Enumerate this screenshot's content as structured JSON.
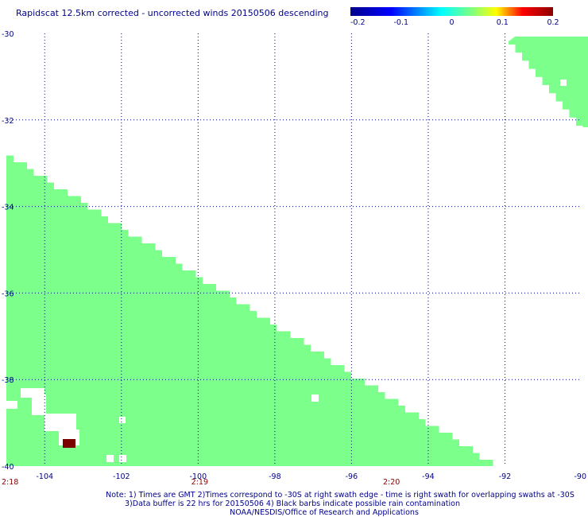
{
  "chart_data": {
    "type": "heatmap",
    "title": "Rapidscat 12.5km corrected - uncorrected winds 20150506 descending",
    "x_axis": {
      "range": [
        -105,
        -90
      ],
      "ticks": [
        -104,
        -102,
        -100,
        -98,
        -96,
        -94,
        -92,
        -90
      ],
      "tick_labels": [
        "-104",
        "-102",
        "-100",
        "-98",
        "-96",
        "-94",
        "-92",
        "-90"
      ]
    },
    "y_axis": {
      "range": [
        -40,
        -30
      ],
      "ticks": [
        -30,
        -32,
        -34,
        -36,
        -38,
        -40
      ],
      "tick_labels": [
        "-30",
        "-32",
        "-34",
        "-36",
        "-38",
        "-40"
      ]
    },
    "grid": true,
    "colorbar": {
      "range": [
        -0.2,
        0.2
      ],
      "ticks": [
        -0.2,
        -0.1,
        0,
        0.1,
        0.2
      ],
      "tick_labels": [
        "-0.2",
        "-0.1",
        "0",
        "0.1",
        "0.2"
      ],
      "stops": [
        "#00008b",
        "#0000ff",
        "#00ffff",
        "#ffff00",
        "#ff0000",
        "#8b0000"
      ]
    },
    "values": {
      "main_swath_value": 0,
      "main_swath_color": "#7dff8b",
      "high_cell_value": 0.2,
      "high_cell_color": "#7b0000"
    },
    "time_labels": [
      {
        "text": "2:18",
        "lon": -105
      },
      {
        "text": "2:19",
        "lon": -100
      },
      {
        "text": "2:20",
        "lon": -95
      }
    ]
  },
  "notes": {
    "line1": "Note: 1) Times are GMT 2)Times correspond to -30S at right swath edge - time is right swath for overlapping swaths at -30S",
    "line2": "3)Data buffer is 22 hrs for 20150506 4) Black barbs indicate possible rain contamination",
    "line3": "NOAA/NESDIS/Office of Research and Applications"
  }
}
